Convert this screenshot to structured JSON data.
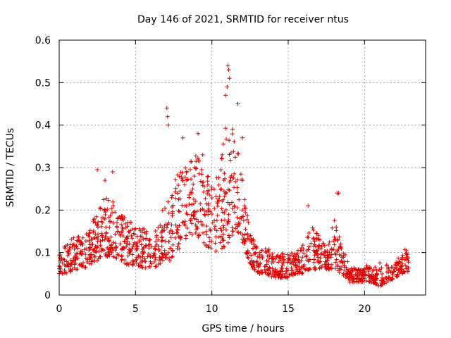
{
  "chart_data": {
    "type": "scatter",
    "title": "Day 146 of 2021, SRMTID for receiver ntus",
    "xlabel": "GPS time / hours",
    "ylabel": "SRMTID / TECUs",
    "xlim": [
      0,
      24
    ],
    "ylim": [
      0,
      0.6
    ],
    "xticks": [
      0,
      5,
      10,
      15,
      20
    ],
    "xtick_labels": [
      "0",
      "5",
      "10",
      "15",
      "20"
    ],
    "yticks": [
      0,
      0.1,
      0.2,
      0.3,
      0.4,
      0.5,
      0.6
    ],
    "ytick_labels": [
      "0",
      "0.1",
      "0.2",
      "0.3",
      "0.4",
      "0.5",
      "0.6"
    ],
    "grid": true,
    "marker": "plus",
    "color": "#e00000",
    "series": [
      {
        "name": "SRMTID",
        "envelope_x": [
          0,
          0.5,
          1,
          1.5,
          2,
          2.5,
          3,
          3.5,
          4,
          4.5,
          5,
          5.5,
          6,
          6.5,
          7,
          7.5,
          8,
          8.5,
          9,
          9.5,
          10,
          10.5,
          11,
          11.5,
          12,
          12.5,
          13,
          13.5,
          14,
          14.5,
          15,
          15.5,
          16,
          16.5,
          17,
          17.5,
          18,
          18.5,
          19,
          19.5,
          20,
          20.5,
          21,
          21.5,
          22,
          22.5,
          22.9
        ],
        "envelope_low": [
          0.05,
          0.05,
          0.06,
          0.06,
          0.07,
          0.08,
          0.09,
          0.09,
          0.08,
          0.07,
          0.07,
          0.06,
          0.06,
          0.07,
          0.08,
          0.08,
          0.12,
          0.14,
          0.14,
          0.12,
          0.1,
          0.1,
          0.12,
          0.14,
          0.12,
          0.07,
          0.05,
          0.05,
          0.04,
          0.04,
          0.04,
          0.05,
          0.05,
          0.06,
          0.06,
          0.06,
          0.06,
          0.05,
          0.03,
          0.03,
          0.03,
          0.03,
          0.02,
          0.03,
          0.04,
          0.05,
          0.05
        ],
        "envelope_high": [
          0.1,
          0.12,
          0.14,
          0.14,
          0.15,
          0.22,
          0.23,
          0.22,
          0.2,
          0.18,
          0.17,
          0.16,
          0.14,
          0.17,
          0.23,
          0.28,
          0.29,
          0.31,
          0.33,
          0.3,
          0.26,
          0.32,
          0.43,
          0.39,
          0.28,
          0.15,
          0.11,
          0.11,
          0.11,
          0.1,
          0.1,
          0.1,
          0.12,
          0.17,
          0.14,
          0.12,
          0.19,
          0.12,
          0.07,
          0.06,
          0.07,
          0.07,
          0.08,
          0.07,
          0.08,
          0.1,
          0.12
        ],
        "outliers": [
          {
            "x": 2.5,
            "y": 0.295
          },
          {
            "x": 3.0,
            "y": 0.27
          },
          {
            "x": 3.5,
            "y": 0.29
          },
          {
            "x": 7.05,
            "y": 0.44
          },
          {
            "x": 7.1,
            "y": 0.42
          },
          {
            "x": 7.15,
            "y": 0.4
          },
          {
            "x": 8.1,
            "y": 0.37
          },
          {
            "x": 9.1,
            "y": 0.38
          },
          {
            "x": 9.4,
            "y": 0.33
          },
          {
            "x": 10.9,
            "y": 0.47
          },
          {
            "x": 11.0,
            "y": 0.49
          },
          {
            "x": 11.05,
            "y": 0.54
          },
          {
            "x": 11.1,
            "y": 0.53
          },
          {
            "x": 11.15,
            "y": 0.51
          },
          {
            "x": 11.7,
            "y": 0.45
          },
          {
            "x": 12.0,
            "y": 0.37
          },
          {
            "x": 16.3,
            "y": 0.21
          },
          {
            "x": 18.2,
            "y": 0.24
          },
          {
            "x": 18.3,
            "y": 0.24
          }
        ]
      }
    ]
  }
}
